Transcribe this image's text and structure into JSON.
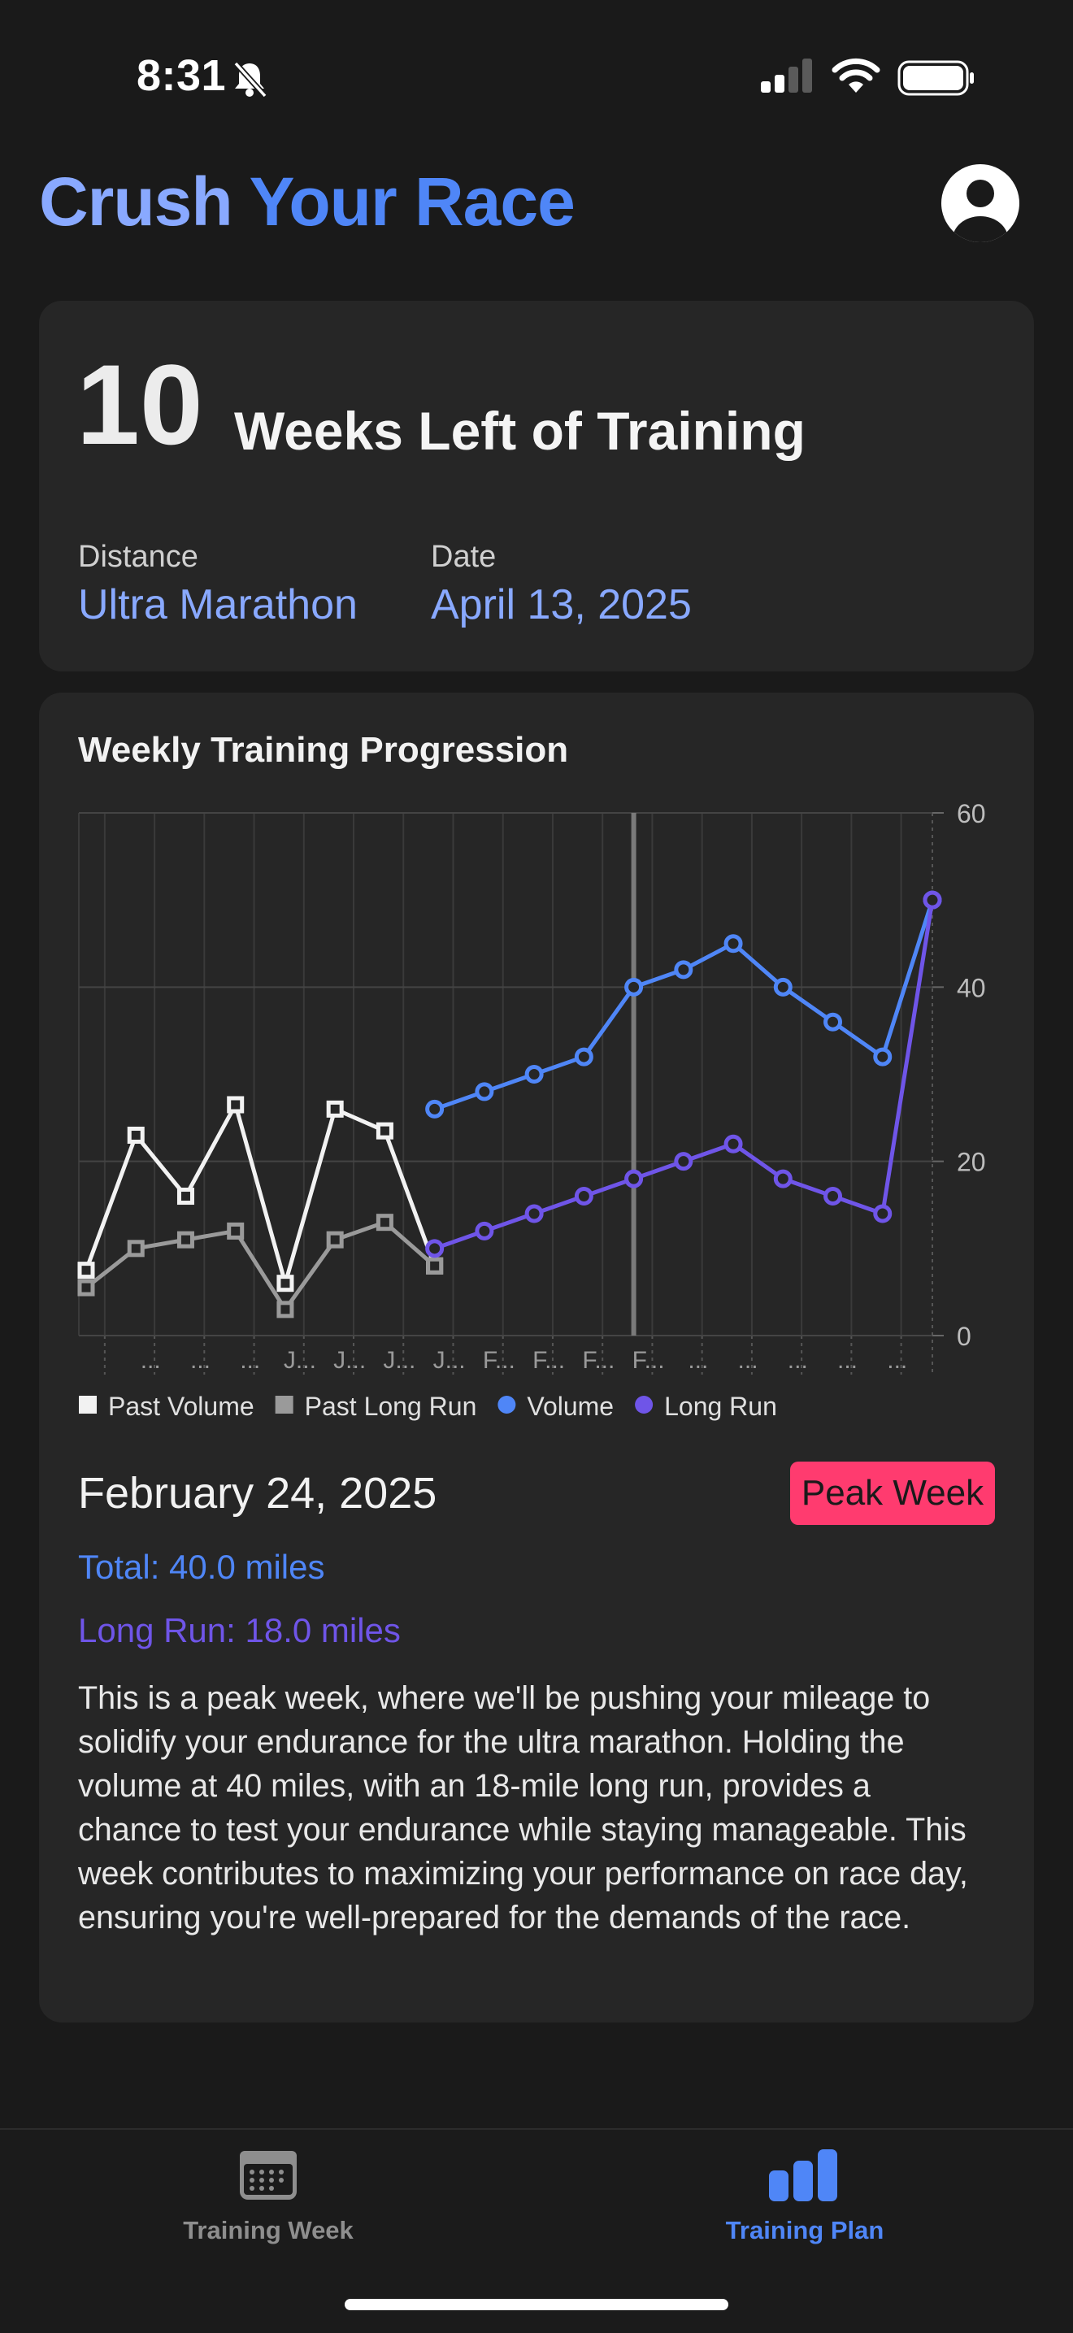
{
  "status_bar": {
    "time": "8:31",
    "icons": [
      "bell-slash-icon",
      "cellular-signal-icon",
      "wifi-icon",
      "battery-icon"
    ]
  },
  "header": {
    "title_part1": "Crush",
    "title_part2": "Your Race",
    "profile_icon": "person-circle-icon"
  },
  "summary": {
    "weeks_left": "10",
    "weeks_label": "Weeks Left of Training",
    "distance_label": "Distance",
    "distance_value": "Ultra Marathon",
    "date_label": "Date",
    "date_value": "April 13, 2025"
  },
  "chart_section": {
    "title": "Weekly Training Progression"
  },
  "chart_data": {
    "type": "line",
    "title": "Weekly Training Progression",
    "ylim": [
      0,
      60
    ],
    "y_ticks": [
      0,
      20,
      40,
      60
    ],
    "grid": true,
    "y_axis_side": "right",
    "categories": [
      "",
      "...",
      "...",
      "...",
      "J...",
      "J...",
      "J...",
      "J...",
      "F...",
      "F...",
      "F...",
      "F...",
      "...",
      "...",
      "...",
      "...",
      "...",
      ""
    ],
    "selected_index": 11,
    "legend_position": "bottom",
    "series": [
      {
        "name": "Past Volume",
        "color": "#f2f2f2",
        "marker": "square",
        "values": [
          7.5,
          23,
          16,
          26.5,
          6,
          26,
          23.5,
          8,
          null,
          null,
          null,
          null,
          null,
          null,
          null,
          null,
          null,
          null
        ]
      },
      {
        "name": "Past Long Run",
        "color": "#9a9a9a",
        "marker": "square",
        "values": [
          5.5,
          10,
          11,
          12,
          3,
          11,
          13,
          8,
          null,
          null,
          null,
          null,
          null,
          null,
          null,
          null,
          null,
          null
        ]
      },
      {
        "name": "Volume",
        "color": "#4f86f7",
        "marker": "circle",
        "values": [
          null,
          null,
          null,
          null,
          null,
          null,
          null,
          26,
          28,
          30,
          32,
          40,
          42,
          45,
          40,
          36,
          32,
          50
        ]
      },
      {
        "name": "Long Run",
        "color": "#6f55e8",
        "marker": "circle",
        "values": [
          null,
          null,
          null,
          null,
          null,
          null,
          null,
          10,
          12,
          14,
          16,
          18,
          20,
          22,
          18,
          16,
          14,
          50
        ]
      }
    ]
  },
  "selected_week": {
    "date": "February 24, 2025",
    "badge": "Peak Week",
    "total": "Total: 40.0 miles",
    "long_run": "Long Run: 18.0 miles",
    "description": "This is a peak week, where we'll be pushing your mileage to solidify your endurance for the ultra marathon. Holding the volume at 40 miles, with an 18-mile long run, provides a chance to test your endurance while staying manageable. This week contributes to maximizing your performance on race day, ensuring you're well-prepared for the demands of the race."
  },
  "tabbar": {
    "tabs": [
      {
        "label": "Training Week",
        "icon": "calendar-icon",
        "active": false
      },
      {
        "label": "Training Plan",
        "icon": "bar-chart-icon",
        "active": true
      }
    ]
  },
  "colors": {
    "background": "#1a1a1a",
    "card": "#262626",
    "accent_blue": "#4f86f7",
    "light_blue": "#89a9ff",
    "purple": "#6f55e8",
    "peak_pink": "#ff3b6f"
  }
}
